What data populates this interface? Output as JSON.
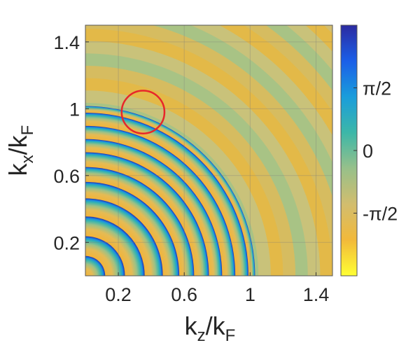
{
  "chart_data": {
    "type": "heatmap",
    "title": "",
    "xlabel": {
      "main": "k",
      "main_sub": "z",
      "sep": "/k",
      "sep_sub": "F"
    },
    "ylabel": {
      "main": "k",
      "main_sub": "x",
      "sep": "/k",
      "sep_sub": "F"
    },
    "xlim": [
      0,
      1.5
    ],
    "ylim": [
      0,
      1.5
    ],
    "x_ticks": [
      {
        "value": 0.2,
        "label": "0.2"
      },
      {
        "value": 0.6,
        "label": "0.6"
      },
      {
        "value": 1.0,
        "label": "1"
      },
      {
        "value": 1.4,
        "label": "1.4"
      }
    ],
    "y_ticks": [
      {
        "value": 0.2,
        "label": "0.2"
      },
      {
        "value": 0.6,
        "label": "0.6"
      },
      {
        "value": 1.0,
        "label": "1"
      },
      {
        "value": 1.4,
        "label": "1.4"
      }
    ],
    "grid": true,
    "colorbar": {
      "range": [
        -3.1416,
        3.1416
      ],
      "ticks": [
        {
          "value": 1.5708,
          "label": "π/2"
        },
        {
          "value": 0,
          "label": "0"
        },
        {
          "value": -1.5708,
          "label": "-π/2"
        }
      ],
      "colormap": "parula",
      "colors": [
        "#ffff33",
        "#f2b93a",
        "#d2bd6e",
        "#97c08a",
        "#3cb7a8",
        "#1a9ddb",
        "#1b5fe8",
        "#2b2aa0"
      ]
    },
    "rings": {
      "description_free": true,
      "inner_wrapped_radii": [
        0.12,
        0.24,
        0.36,
        0.47,
        0.57,
        0.66,
        0.75,
        0.83,
        0.91,
        0.99,
        1.03
      ],
      "outer_ring_spacing": 0.075,
      "outer_ring_max_radius": 2.1
    },
    "annotation": {
      "shape": "circle",
      "center": [
        0.35,
        0.98
      ],
      "radius": 0.13,
      "color": "#e8262a"
    }
  }
}
